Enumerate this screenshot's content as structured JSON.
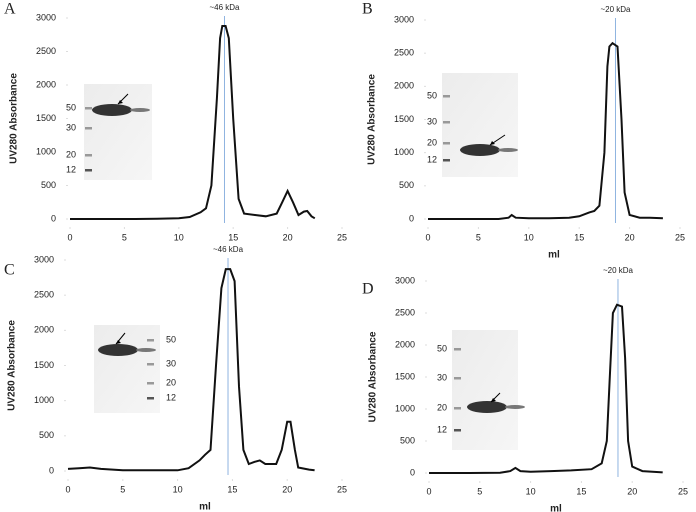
{
  "chart_data": [
    {
      "type": "line",
      "panel": "A",
      "ylabel": "UV280 Absorbance",
      "annotation": {
        "text": "~46 kDa",
        "x": 14.2
      },
      "inset_labels": [
        "50",
        "30",
        "20",
        "12"
      ],
      "xlim": [
        0,
        25
      ],
      "xticks": [
        0,
        5,
        10,
        15,
        20,
        25
      ],
      "ylim": [
        0,
        3000
      ],
      "yticks": [
        0,
        500,
        1000,
        1500,
        2000,
        2500,
        3000
      ],
      "color": "#111111",
      "marker_color": "#8fb4e0",
      "x": [
        0,
        2,
        4,
        6,
        8,
        10,
        11,
        12,
        12.5,
        13,
        13.5,
        13.8,
        14,
        14.3,
        14.6,
        15,
        15.5,
        16,
        17,
        18,
        19,
        19.5,
        20,
        20.5,
        21,
        21.5,
        21.8,
        22.2,
        22.5
      ],
      "values": [
        0,
        0,
        0,
        0,
        5,
        10,
        30,
        100,
        160,
        500,
        1800,
        2700,
        2880,
        2880,
        2700,
        1500,
        300,
        80,
        60,
        40,
        80,
        250,
        420,
        250,
        60,
        110,
        120,
        40,
        10
      ]
    },
    {
      "type": "line",
      "panel": "B",
      "ylabel": "UV280 Absorbance",
      "xlabel": "ml",
      "annotation": {
        "text": "~20 kDa",
        "x": 18.6
      },
      "inset_labels": [
        "50",
        "30",
        "20",
        "12"
      ],
      "xlim": [
        0,
        25
      ],
      "xticks": [
        0,
        5,
        10,
        15,
        20,
        25
      ],
      "ylim": [
        0,
        3000
      ],
      "yticks": [
        0,
        500,
        1000,
        1500,
        2000,
        2500,
        3000
      ],
      "color": "#111111",
      "marker_color": "#8fb4e0",
      "x": [
        0,
        4,
        7,
        8,
        8.3,
        8.7,
        10,
        12,
        14,
        15,
        16,
        16.5,
        17,
        17.5,
        17.8,
        18,
        18.3,
        18.8,
        19.2,
        19.5,
        20,
        21,
        22,
        23.3
      ],
      "values": [
        0,
        0,
        0,
        20,
        60,
        20,
        10,
        10,
        20,
        40,
        100,
        120,
        200,
        1000,
        2300,
        2600,
        2650,
        2600,
        1500,
        400,
        60,
        20,
        20,
        10
      ]
    },
    {
      "type": "line",
      "panel": "C",
      "ylabel": "UV280 Absorbance",
      "xlabel": "ml",
      "annotation": {
        "text": "~46 kDa",
        "x": 14.6
      },
      "inset_labels": [
        "50",
        "30",
        "20",
        "12"
      ],
      "xlim": [
        0,
        25
      ],
      "xticks": [
        0,
        5,
        10,
        15,
        20,
        25
      ],
      "ylim": [
        0,
        3000
      ],
      "yticks": [
        0,
        500,
        1000,
        1500,
        2000,
        2500,
        3000
      ],
      "color": "#111111",
      "marker_color": "#8fb4e0",
      "x": [
        0,
        1,
        2,
        3,
        5,
        8,
        10,
        11,
        12,
        12.5,
        13,
        13.5,
        14,
        14.4,
        14.8,
        15.2,
        15.6,
        16,
        16.5,
        17,
        17.5,
        18,
        19,
        19.5,
        20,
        20.3,
        20.7,
        21,
        22,
        22.5
      ],
      "values": [
        30,
        40,
        50,
        30,
        10,
        10,
        10,
        40,
        150,
        230,
        300,
        1500,
        2600,
        2870,
        2870,
        2700,
        1200,
        300,
        100,
        130,
        150,
        100,
        100,
        300,
        700,
        700,
        300,
        50,
        20,
        10
      ]
    },
    {
      "type": "line",
      "panel": "D",
      "ylabel": "UV280 Absorbance",
      "xlabel": "ml",
      "annotation": {
        "text": "~20 kDa",
        "x": 18.6
      },
      "inset_labels": [
        "50",
        "30",
        "20",
        "12"
      ],
      "xlim": [
        0,
        25
      ],
      "xticks": [
        0,
        5,
        10,
        15,
        20,
        25
      ],
      "ylim": [
        0,
        3000
      ],
      "yticks": [
        0,
        500,
        1000,
        1500,
        2000,
        2500,
        3000
      ],
      "color": "#111111",
      "marker_color": "#8fb4e0",
      "x": [
        0,
        4,
        7,
        8,
        8.5,
        9,
        10,
        12,
        14,
        16,
        17,
        17.5,
        17.8,
        18.1,
        18.5,
        19,
        19.3,
        19.6,
        20,
        21,
        22,
        23
      ],
      "values": [
        0,
        0,
        5,
        30,
        80,
        30,
        20,
        30,
        40,
        60,
        150,
        500,
        1500,
        2500,
        2630,
        2600,
        1800,
        500,
        100,
        30,
        20,
        10
      ]
    }
  ]
}
